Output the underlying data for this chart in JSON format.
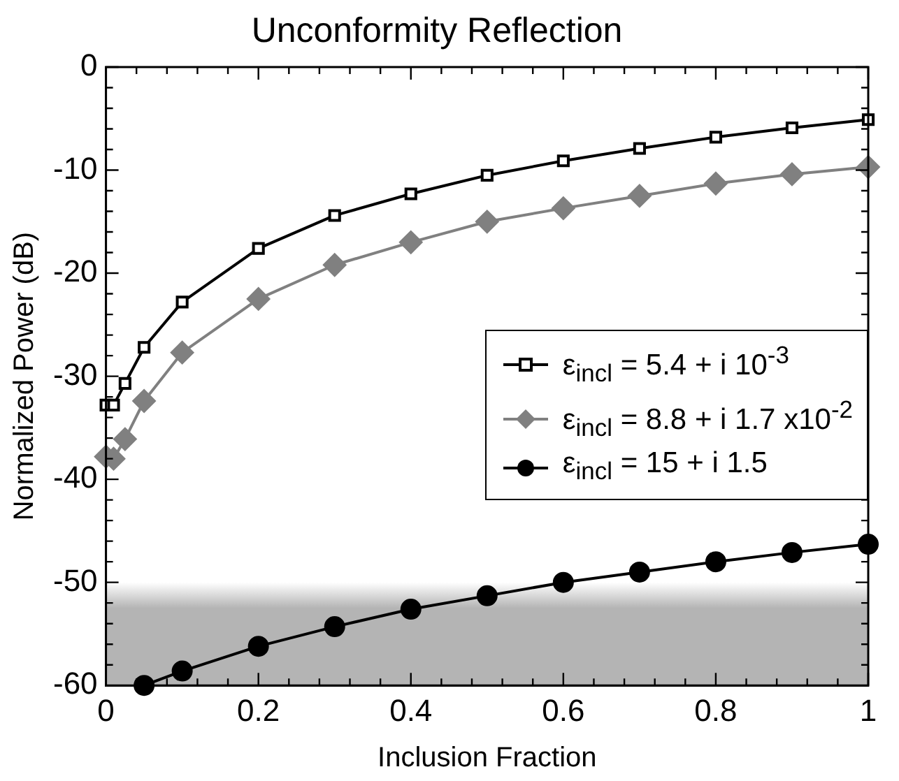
{
  "chart_data": {
    "type": "line",
    "title": "Unconformity Reflection",
    "xlabel": "Inclusion Fraction",
    "ylabel": "Normalized Power (dB)",
    "xlim": [
      0,
      1
    ],
    "ylim": [
      -60,
      0
    ],
    "xticks": [
      0,
      {
        "value": 0.04,
        "label": null
      },
      {
        "value": 0.08,
        "label": null
      },
      {
        "value": 0.12,
        "label": null
      },
      {
        "value": 0.16,
        "label": null
      },
      0.2,
      {
        "value": 0.24,
        "label": null
      },
      {
        "value": 0.28,
        "label": null
      },
      {
        "value": 0.32,
        "label": null
      },
      {
        "value": 0.36,
        "label": null
      },
      0.4,
      {
        "value": 0.44,
        "label": null
      },
      {
        "value": 0.48,
        "label": null
      },
      {
        "value": 0.52,
        "label": null
      },
      {
        "value": 0.56,
        "label": null
      },
      0.6,
      {
        "value": 0.64,
        "label": null
      },
      {
        "value": 0.68,
        "label": null
      },
      {
        "value": 0.72,
        "label": null
      },
      {
        "value": 0.76,
        "label": null
      },
      0.8,
      {
        "value": 0.84,
        "label": null
      },
      {
        "value": 0.88,
        "label": null
      },
      {
        "value": 0.92,
        "label": null
      },
      {
        "value": 0.96,
        "label": null
      },
      1
    ],
    "yticks": [
      -60,
      {
        "value": -58,
        "label": null
      },
      {
        "value": -56,
        "label": null
      },
      {
        "value": -54,
        "label": null
      },
      {
        "value": -52,
        "label": null
      },
      -50,
      {
        "value": -48,
        "label": null
      },
      {
        "value": -46,
        "label": null
      },
      {
        "value": -44,
        "label": null
      },
      {
        "value": -42,
        "label": null
      },
      -40,
      {
        "value": -38,
        "label": null
      },
      {
        "value": -36,
        "label": null
      },
      {
        "value": -34,
        "label": null
      },
      {
        "value": -32,
        "label": null
      },
      -30,
      {
        "value": -28,
        "label": null
      },
      {
        "value": -26,
        "label": null
      },
      {
        "value": -24,
        "label": null
      },
      {
        "value": -22,
        "label": null
      },
      -20,
      {
        "value": -18,
        "label": null
      },
      {
        "value": -16,
        "label": null
      },
      {
        "value": -14,
        "label": null
      },
      {
        "value": -12,
        "label": null
      },
      -10,
      {
        "value": -8,
        "label": null
      },
      {
        "value": -6,
        "label": null
      },
      {
        "value": -4,
        "label": null
      },
      {
        "value": -2,
        "label": null
      },
      0
    ],
    "grid": false,
    "legend": "right",
    "line_style": "solid",
    "bands": [
      {
        "axis": "y",
        "from": -60,
        "to": -50,
        "color": "#b4b4b4"
      }
    ],
    "series": [
      {
        "name": "ε$_{incl}$ = 5.4 + i 10$^{-3}$",
        "color": "#000000",
        "marker": "square",
        "x": [
          0,
          0.01,
          0.025,
          0.05,
          0.1,
          0.2,
          0.3,
          0.4,
          0.5,
          0.6,
          0.7,
          0.8,
          0.9,
          1
        ],
        "values": [
          -32.8,
          -32.8,
          -30.7,
          -27.2,
          -22.8,
          -17.6,
          -14.4,
          -12.3,
          -10.5,
          -9.1,
          -7.9,
          -6.8,
          -5.9,
          -5.1
        ]
      },
      {
        "name": "ε$_{incl}$ = 8.8 + i 1.7 x10$^{-2}$",
        "color": "#808080",
        "marker": "diamond",
        "x": [
          0,
          0.01,
          0.025,
          0.05,
          0.1,
          0.2,
          0.3,
          0.4,
          0.5,
          0.6,
          0.7,
          0.8,
          0.9,
          1
        ],
        "values": [
          -37.8,
          -38.0,
          -36.1,
          -32.4,
          -27.7,
          -22.5,
          -19.2,
          -17.0,
          -15.0,
          -13.7,
          -12.5,
          -11.3,
          -10.4,
          -9.7
        ]
      },
      {
        "name": "ε$_{incl}$ = 15 + i 1.5",
        "color": "#000000",
        "marker": "circle",
        "x": [
          0.05,
          0.1,
          0.2,
          0.3,
          0.4,
          0.5,
          0.6,
          0.7,
          0.8,
          0.9,
          1
        ],
        "values": [
          -60,
          -58.6,
          -56.2,
          -54.3,
          -52.6,
          -51.3,
          -50.0,
          -49.0,
          -48.0,
          -47.1,
          -46.3
        ]
      }
    ]
  }
}
